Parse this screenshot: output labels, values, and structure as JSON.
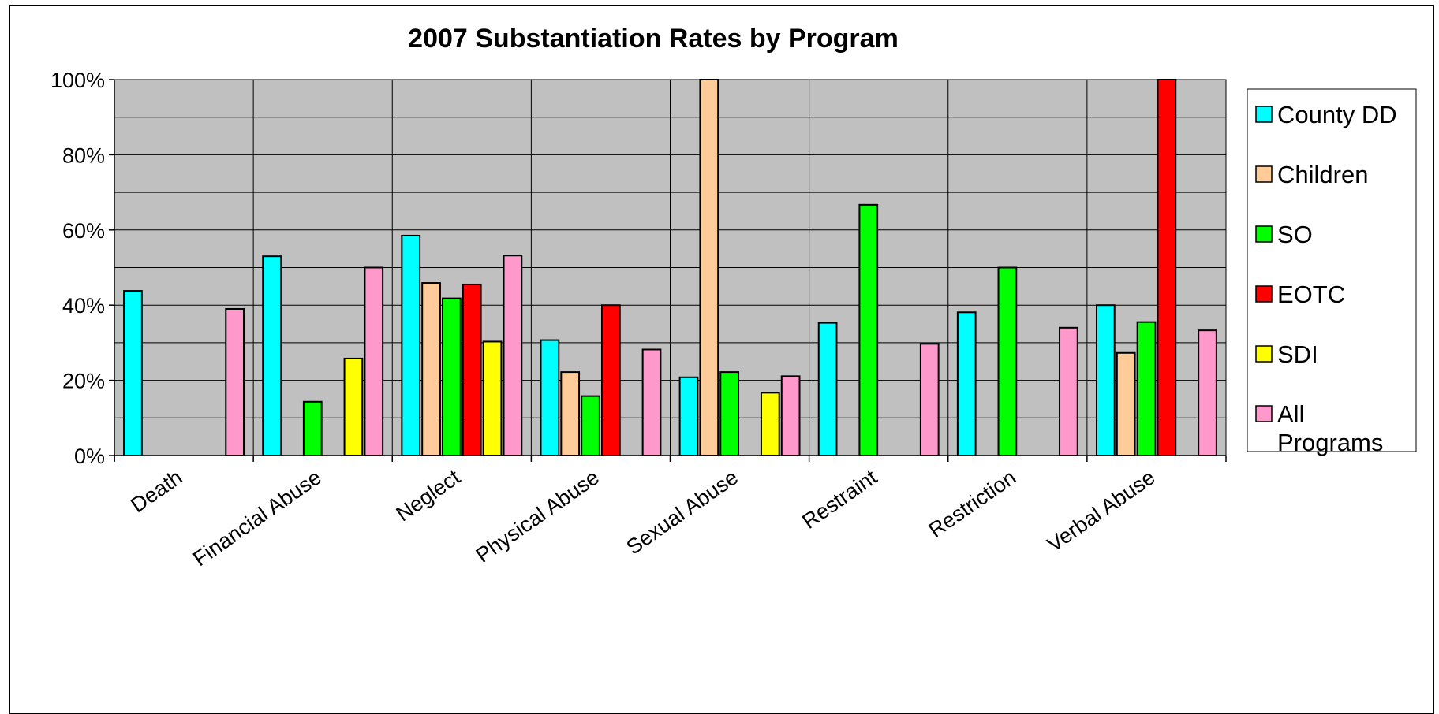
{
  "chart_data": {
    "type": "bar",
    "title": "2007 Substantiation Rates by Program",
    "xlabel": "",
    "ylabel": "",
    "ylim": [
      0,
      100
    ],
    "y_ticks": [
      "0%",
      "20%",
      "40%",
      "60%",
      "80%",
      "100%"
    ],
    "categories": [
      "Death",
      "Financial Abuse",
      "Neglect",
      "Physical Abuse",
      "Sexual Abuse",
      "Restraint",
      "Restriction",
      "Verbal Abuse"
    ],
    "series": [
      {
        "name": "County DD",
        "color": "#00FFFF",
        "values": [
          43.8,
          53,
          58.5,
          30.7,
          20.8,
          35.3,
          38.1,
          40
        ]
      },
      {
        "name": "Children",
        "color": "#FFCC99",
        "values": [
          null,
          null,
          45.9,
          22.2,
          100,
          null,
          null,
          27.3
        ]
      },
      {
        "name": "SO",
        "color": "#00FF00",
        "values": [
          null,
          14.3,
          41.8,
          15.8,
          22.2,
          66.7,
          50,
          35.5
        ]
      },
      {
        "name": "EOTC",
        "color": "#FF0000",
        "values": [
          null,
          null,
          45.5,
          40,
          null,
          null,
          null,
          100
        ]
      },
      {
        "name": "SDI",
        "color": "#FFFF00",
        "values": [
          null,
          25.8,
          30.3,
          null,
          16.7,
          null,
          null,
          null
        ]
      },
      {
        "name": "All Programs",
        "color": "#FF99CC",
        "values": [
          39,
          50,
          53.2,
          28.2,
          21.1,
          29.7,
          34,
          33.3
        ]
      }
    ],
    "grid": true,
    "plot_background": "#C0C0C0",
    "legend_position": "right"
  }
}
